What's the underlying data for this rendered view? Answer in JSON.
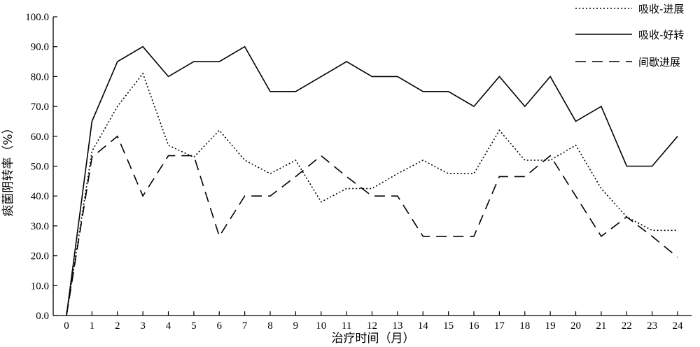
{
  "chart_data": {
    "type": "line",
    "title": "",
    "xlabel": "治疗时间（月）",
    "ylabel": "痰菌阴转率（%）",
    "xlim": [
      0,
      24
    ],
    "ylim": [
      0,
      100
    ],
    "x": [
      0,
      1,
      2,
      3,
      4,
      5,
      6,
      7,
      8,
      9,
      10,
      11,
      12,
      13,
      14,
      15,
      16,
      17,
      18,
      19,
      20,
      21,
      22,
      23,
      24
    ],
    "x_tick_labels": [
      "0",
      "1",
      "2",
      "3",
      "4",
      "5",
      "6",
      "7",
      "8",
      "9",
      "10",
      "11",
      "12",
      "13",
      "14",
      "15",
      "16",
      "17",
      "18",
      "19",
      "20",
      "21",
      "22",
      "23",
      "24"
    ],
    "y_ticks": [
      0,
      10,
      20,
      30,
      40,
      50,
      60,
      70,
      80,
      90,
      100
    ],
    "y_tick_labels": [
      "0.0",
      "10.0",
      "20.0",
      "30.0",
      "40.0",
      "50.0",
      "60.0",
      "70.0",
      "80.0",
      "90.0",
      "100.0"
    ],
    "grid": false,
    "legend_position": "top-right",
    "series": [
      {
        "name": "吸收-进展",
        "line_style": "dotted",
        "values": [
          0,
          55,
          70,
          81,
          57,
          53,
          62,
          52,
          47.5,
          52,
          38,
          42.5,
          42.5,
          47.5,
          52,
          47.5,
          47.5,
          62,
          52,
          52,
          57,
          42.5,
          33,
          28.5,
          28.5
        ]
      },
      {
        "name": "吸收-好转",
        "line_style": "solid",
        "values": [
          0,
          65,
          85,
          90,
          80,
          85,
          85,
          90,
          75,
          75,
          80,
          85,
          80,
          80,
          75,
          75,
          70,
          80,
          70,
          80,
          65,
          70,
          50,
          50,
          60
        ]
      },
      {
        "name": "间歇进展",
        "line_style": "dashed",
        "values": [
          0,
          53,
          60,
          40,
          53.5,
          53.5,
          26.5,
          40,
          40,
          46.5,
          53.5,
          46.5,
          40,
          40,
          26.5,
          26.5,
          26.5,
          46.5,
          46.5,
          53.5,
          40,
          26.5,
          33,
          26.5,
          19.5
        ]
      }
    ],
    "colors": {
      "line": "#000000",
      "axis": "#000000",
      "background": "#ffffff"
    }
  }
}
